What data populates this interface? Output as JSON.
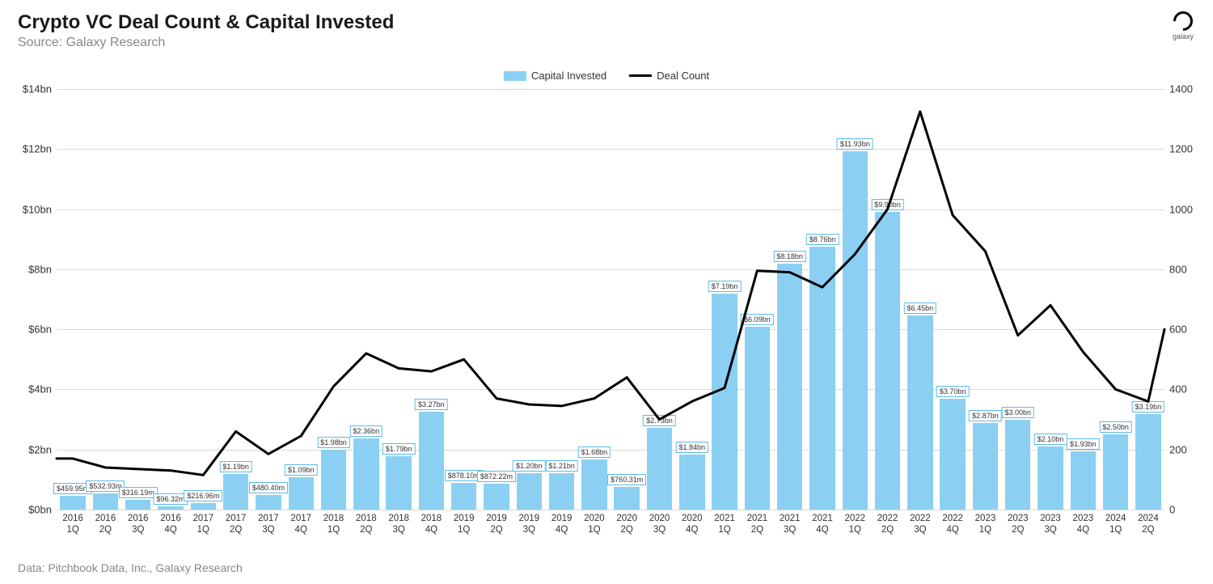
{
  "title": "Crypto VC Deal Count & Capital Invested",
  "subtitle": "Source: Galaxy Research",
  "footer": "Data: Pitchbook Data, Inc., Galaxy Research",
  "logo_text": "galaxy",
  "legend": {
    "bar_label": "Capital Invested",
    "line_label": "Deal Count"
  },
  "chart": {
    "type": "bar+line",
    "background_color": "#ffffff",
    "grid_color": "#d9d9d9",
    "bar_color": "#8bd0f2",
    "bar_border_color": "#5bbbe8",
    "line_color": "#000000",
    "line_width": 3,
    "bar_width_ratio": 0.78,
    "left_axis": {
      "label_prefix": "$",
      "unit": "bn",
      "min": 0,
      "max": 14,
      "tick_step": 2,
      "ticks": [
        "$0bn",
        "$2bn",
        "$4bn",
        "$6bn",
        "$8bn",
        "$10bn",
        "$12bn",
        "$14bn"
      ],
      "tick_fontsize": 13
    },
    "right_axis": {
      "min": 0,
      "max": 1400,
      "tick_step": 200,
      "ticks": [
        "0",
        "200",
        "400",
        "600",
        "800",
        "1000",
        "1200",
        "1400"
      ],
      "tick_fontsize": 13
    },
    "title_fontsize": 24,
    "subtitle_fontsize": 16,
    "footer_fontsize": 14,
    "xaxis_fontsize": 11.5,
    "bar_label_fontsize": 9,
    "legend_fontsize": 13,
    "categories": [
      {
        "year": "2016",
        "q": "1Q"
      },
      {
        "year": "2016",
        "q": "2Q"
      },
      {
        "year": "2016",
        "q": "3Q"
      },
      {
        "year": "2016",
        "q": "4Q"
      },
      {
        "year": "2017",
        "q": "1Q"
      },
      {
        "year": "2017",
        "q": "2Q"
      },
      {
        "year": "2017",
        "q": "3Q"
      },
      {
        "year": "2017",
        "q": "4Q"
      },
      {
        "year": "2018",
        "q": "1Q"
      },
      {
        "year": "2018",
        "q": "2Q"
      },
      {
        "year": "2018",
        "q": "3Q"
      },
      {
        "year": "2018",
        "q": "4Q"
      },
      {
        "year": "2019",
        "q": "1Q"
      },
      {
        "year": "2019",
        "q": "2Q"
      },
      {
        "year": "2019",
        "q": "3Q"
      },
      {
        "year": "2019",
        "q": "4Q"
      },
      {
        "year": "2020",
        "q": "1Q"
      },
      {
        "year": "2020",
        "q": "2Q"
      },
      {
        "year": "2020",
        "q": "3Q"
      },
      {
        "year": "2020",
        "q": "4Q"
      },
      {
        "year": "2021",
        "q": "1Q"
      },
      {
        "year": "2021",
        "q": "2Q"
      },
      {
        "year": "2021",
        "q": "3Q"
      },
      {
        "year": "2021",
        "q": "4Q"
      },
      {
        "year": "2022",
        "q": "1Q"
      },
      {
        "year": "2022",
        "q": "2Q"
      },
      {
        "year": "2022",
        "q": "3Q"
      },
      {
        "year": "2022",
        "q": "4Q"
      },
      {
        "year": "2023",
        "q": "1Q"
      },
      {
        "year": "2023",
        "q": "2Q"
      },
      {
        "year": "2023",
        "q": "3Q"
      },
      {
        "year": "2023",
        "q": "4Q"
      },
      {
        "year": "2024",
        "q": "1Q"
      },
      {
        "year": "2024",
        "q": "2Q"
      }
    ],
    "capital_invested_bn": [
      0.45995,
      0.53293,
      0.31619,
      0.09632,
      0.21696,
      1.19,
      0.4804,
      1.09,
      1.98,
      2.36,
      1.79,
      3.27,
      0.8781,
      0.87222,
      1.2,
      1.21,
      1.68,
      0.76031,
      2.73,
      1.84,
      7.19,
      6.09,
      8.18,
      8.76,
      11.93,
      9.9,
      6.45,
      3.7,
      2.87,
      3.0,
      2.1,
      1.93,
      2.5,
      3.19
    ],
    "capital_labels": [
      "$459.95m",
      "$532.93m",
      "$316.19m",
      "$96.32m",
      "$216.96m",
      "$1.19bn",
      "$480.40m",
      "$1.09bn",
      "$1.98bn",
      "$2.36bn",
      "$1.79bn",
      "$3.27bn",
      "$878.10m",
      "$872.22m",
      "$1.20bn",
      "$1.21bn",
      "$1.68bn",
      "$760.31m",
      "$2.73bn",
      "$1.84bn",
      "$7.19bn",
      "$6.09bn",
      "$8.18bn",
      "$8.76bn",
      "$11.93bn",
      "$9.90bn",
      "$6.45bn",
      "$3.70bn",
      "$2.87bn",
      "$3.00bn",
      "$2.10bn",
      "$1.93bn",
      "$2.50bn",
      "$3.19bn"
    ],
    "deal_count": [
      170,
      140,
      135,
      130,
      115,
      260,
      185,
      245,
      410,
      520,
      470,
      460,
      500,
      370,
      350,
      345,
      370,
      440,
      300,
      360,
      405,
      795,
      790,
      740,
      850,
      1000,
      1325,
      980,
      860,
      580,
      680,
      525,
      400,
      360
    ],
    "deal_count_last_extra": 600
  }
}
